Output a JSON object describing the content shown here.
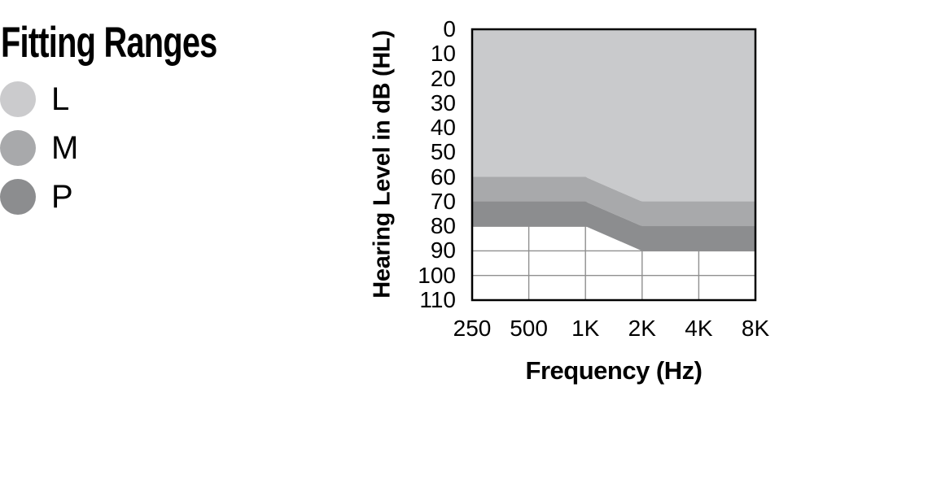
{
  "figure": {
    "title": "Fitting Ranges"
  },
  "legend": {
    "items": [
      {
        "label": "L",
        "color": "#cbcbcd"
      },
      {
        "label": "M",
        "color": "#a8a9ab"
      },
      {
        "label": "P",
        "color": "#8c8d8f"
      }
    ]
  },
  "chart_data": {
    "type": "area",
    "title": "Fitting Ranges",
    "xlabel": "Frequency (Hz)",
    "ylabel": "Hearing Level in dB (HL)",
    "x_ticks": [
      "250",
      "500",
      "1K",
      "2K",
      "4K",
      "8K"
    ],
    "x_scale": "octaves, equally spaced ticks",
    "y_ticks": [
      0,
      10,
      20,
      30,
      40,
      50,
      60,
      70,
      80,
      90,
      100,
      110
    ],
    "ylim": [
      0,
      110
    ],
    "y_axis_points_down": true,
    "grid": {
      "color": "#8f8f8f",
      "vertical_at": [
        "500",
        "1K",
        "2K",
        "4K"
      ],
      "horizontal_every_db": 10,
      "visible_only_in_unshaded_area": true
    },
    "border_color": "#000000",
    "series": [
      {
        "name": "L",
        "fill": "#c9cacc",
        "upper_db": [
          0,
          0,
          0,
          0,
          0,
          0
        ],
        "lower_db": [
          60,
          60,
          60,
          70,
          70,
          70
        ]
      },
      {
        "name": "M",
        "fill": "#a8a9ab",
        "upper_db": [
          60,
          60,
          60,
          70,
          70,
          70
        ],
        "lower_db": [
          70,
          70,
          70,
          80,
          80,
          80
        ]
      },
      {
        "name": "P",
        "fill": "#8c8d8f",
        "upper_db": [
          70,
          70,
          70,
          80,
          80,
          80
        ],
        "lower_db": [
          80,
          80,
          80,
          90,
          90,
          90
        ]
      }
    ]
  }
}
